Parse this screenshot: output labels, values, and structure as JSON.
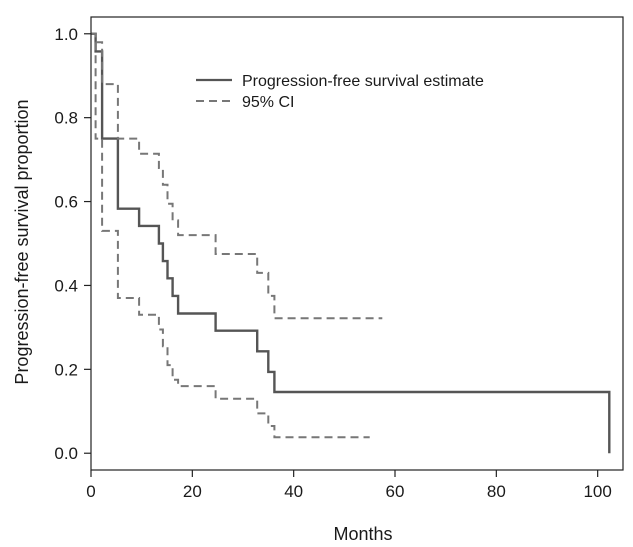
{
  "chart_data": {
    "type": "line",
    "title": "",
    "xlabel": "Months",
    "ylabel": "Progression-free survival proportion",
    "xlim": [
      0,
      105
    ],
    "ylim": [
      -0.04,
      1.04
    ],
    "xticks": [
      0,
      20,
      40,
      60,
      80,
      100
    ],
    "xtick_labels": [
      "0",
      "20",
      "40",
      "60",
      "80",
      "100"
    ],
    "yticks": [
      0.0,
      0.2,
      0.4,
      0.6,
      0.8,
      1.0
    ],
    "ytick_labels": [
      "0.0",
      "0.2",
      "0.4",
      "0.6",
      "0.8",
      "1.0"
    ],
    "grid": false,
    "legend_position": "top-center",
    "series": [
      {
        "name": "Progression-free survival estimate",
        "style": "solid",
        "color": "#555555",
        "x": [
          0,
          0.9,
          0.9,
          2.2,
          2.2,
          5.3,
          5.3,
          9.5,
          9.5,
          13.4,
          13.4,
          14.2,
          14.2,
          15.1,
          15.1,
          16.1,
          16.1,
          17.2,
          17.2,
          24.6,
          24.6,
          32.8,
          32.8,
          35.0,
          35.0,
          36.2,
          36.2,
          102.3,
          102.3
        ],
        "y": [
          1.0,
          1.0,
          0.958,
          0.958,
          0.75,
          0.75,
          0.583,
          0.583,
          0.542,
          0.542,
          0.5,
          0.5,
          0.458,
          0.458,
          0.417,
          0.417,
          0.375,
          0.375,
          0.333,
          0.333,
          0.292,
          0.292,
          0.243,
          0.243,
          0.194,
          0.194,
          0.146,
          0.146,
          0.0
        ]
      },
      {
        "name": "95% CI",
        "style": "dashed",
        "color": "#777777",
        "x": [
          0,
          0.9,
          0.9,
          2.2,
          2.2,
          5.3,
          5.3,
          9.5,
          9.5,
          13.4,
          13.4,
          14.2,
          14.2,
          15.1,
          15.1,
          16.1,
          16.1,
          17.2,
          17.2,
          24.6,
          24.6,
          32.8,
          32.8,
          35.0,
          35.0,
          36.2,
          36.2,
          57.5
        ],
        "y": [
          1.0,
          1.0,
          0.98,
          0.98,
          0.88,
          0.88,
          0.75,
          0.75,
          0.714,
          0.714,
          0.68,
          0.68,
          0.64,
          0.64,
          0.595,
          0.595,
          0.555,
          0.555,
          0.52,
          0.52,
          0.475,
          0.475,
          0.43,
          0.43,
          0.375,
          0.375,
          0.322,
          0.322
        ]
      },
      {
        "name": "",
        "style": "dashed",
        "color": "#777777",
        "x": [
          0,
          0.9,
          0.9,
          2.2,
          2.2,
          5.3,
          5.3,
          9.5,
          9.5,
          13.4,
          13.4,
          14.2,
          14.2,
          15.1,
          15.1,
          16.1,
          16.1,
          17.2,
          17.2,
          24.6,
          24.6,
          32.8,
          32.8,
          35.0,
          35.0,
          36.2,
          36.2,
          55.0
        ],
        "y": [
          1.0,
          1.0,
          0.75,
          0.75,
          0.53,
          0.53,
          0.37,
          0.37,
          0.33,
          0.33,
          0.295,
          0.295,
          0.255,
          0.255,
          0.21,
          0.21,
          0.175,
          0.175,
          0.16,
          0.16,
          0.13,
          0.13,
          0.095,
          0.095,
          0.065,
          0.065,
          0.038,
          0.038
        ]
      }
    ]
  }
}
